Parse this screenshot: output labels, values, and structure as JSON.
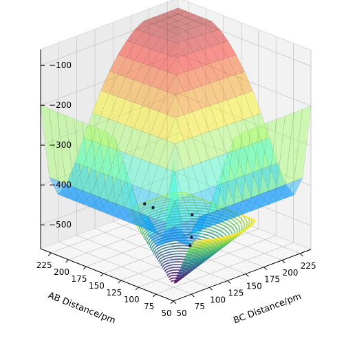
{
  "chart_data": {
    "type": "surface",
    "title": "",
    "xlabel": "AB Distance/pm",
    "ylabel": "BC Distance/pm",
    "zlabel": "",
    "x_ticks": [
      50,
      75,
      100,
      125,
      150,
      175,
      200,
      225
    ],
    "y_ticks": [
      50,
      75,
      100,
      125,
      150,
      175,
      200,
      225
    ],
    "z_ticks": [
      -100,
      -200,
      -300,
      -400,
      -500
    ],
    "x_tick_labels": [
      "50",
      "75",
      "100",
      "125",
      "150",
      "175",
      "200",
      "225"
    ],
    "y_tick_labels": [
      "50",
      "75",
      "100",
      "125",
      "150",
      "175",
      "200",
      "225"
    ],
    "z_tick_labels": [
      "−100",
      "−200",
      "−300",
      "−400",
      "−500"
    ],
    "xlim": [
      50,
      240
    ],
    "ylim": [
      50,
      240
    ],
    "zlim": [
      -560,
      -60
    ],
    "grid": true,
    "colormap_surface": "jet",
    "colormap_contour": "viridis",
    "trajectory_points": [
      {
        "ab": 75,
        "bc": 100,
        "energy": -395
      },
      {
        "ab": 78,
        "bc": 102,
        "energy": -455
      },
      {
        "ab": 82,
        "bc": 104,
        "energy": -480
      },
      {
        "ab": 108,
        "bc": 78,
        "energy": -385
      },
      {
        "ab": 116,
        "bc": 74,
        "energy": -378
      }
    ]
  }
}
